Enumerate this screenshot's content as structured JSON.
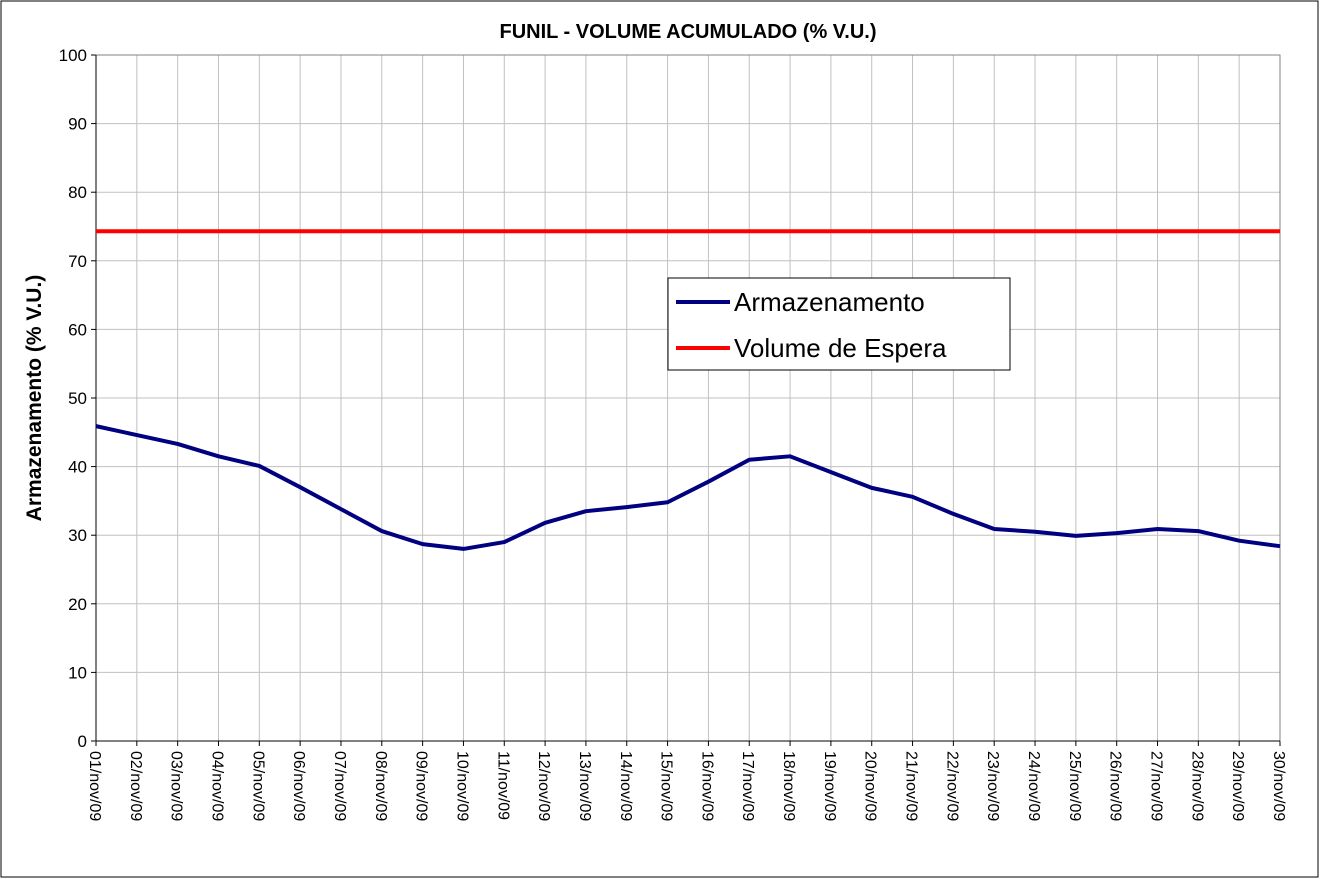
{
  "chart_data": {
    "type": "line",
    "title": "FUNIL - VOLUME ACUMULADO (% V.U.)",
    "y_label": "Armazenamento (% V.U.)",
    "categories": [
      "01/nov/09",
      "02/nov/09",
      "03/nov/09",
      "04/nov/09",
      "05/nov/09",
      "06/nov/09",
      "07/nov/09",
      "08/nov/09",
      "09/nov/09",
      "10/nov/09",
      "11/nov/09",
      "12/nov/09",
      "13/nov/09",
      "14/nov/09",
      "15/nov/09",
      "16/nov/09",
      "17/nov/09",
      "18/nov/09",
      "19/nov/09",
      "20/nov/09",
      "21/nov/09",
      "22/nov/09",
      "23/nov/09",
      "24/nov/09",
      "25/nov/09",
      "26/nov/09",
      "27/nov/09",
      "28/nov/09",
      "29/nov/09",
      "30/nov/09"
    ],
    "series": [
      {
        "name": "Armazenamento",
        "color": "#000080",
        "values": [
          45.9,
          44.6,
          43.3,
          41.5,
          40.1,
          37.0,
          33.8,
          30.6,
          28.7,
          28.0,
          29.0,
          31.8,
          33.5,
          34.1,
          34.8,
          37.8,
          41.0,
          41.5,
          39.2,
          36.9,
          35.6,
          33.1,
          30.9,
          30.5,
          29.9,
          30.3,
          30.9,
          30.6,
          29.2,
          28.4
        ]
      },
      {
        "name": "Volume de Espera",
        "color": "#ff0000",
        "values": [
          74.3,
          74.3,
          74.3,
          74.3,
          74.3,
          74.3,
          74.3,
          74.3,
          74.3,
          74.3,
          74.3,
          74.3,
          74.3,
          74.3,
          74.3,
          74.3,
          74.3,
          74.3,
          74.3,
          74.3,
          74.3,
          74.3,
          74.3,
          74.3,
          74.3,
          74.3,
          74.3,
          74.3,
          74.3,
          74.3
        ]
      }
    ],
    "ylim": [
      0,
      100
    ],
    "yticks": [
      0,
      10,
      20,
      30,
      40,
      50,
      60,
      70,
      80,
      90,
      100
    ],
    "grid": true
  }
}
